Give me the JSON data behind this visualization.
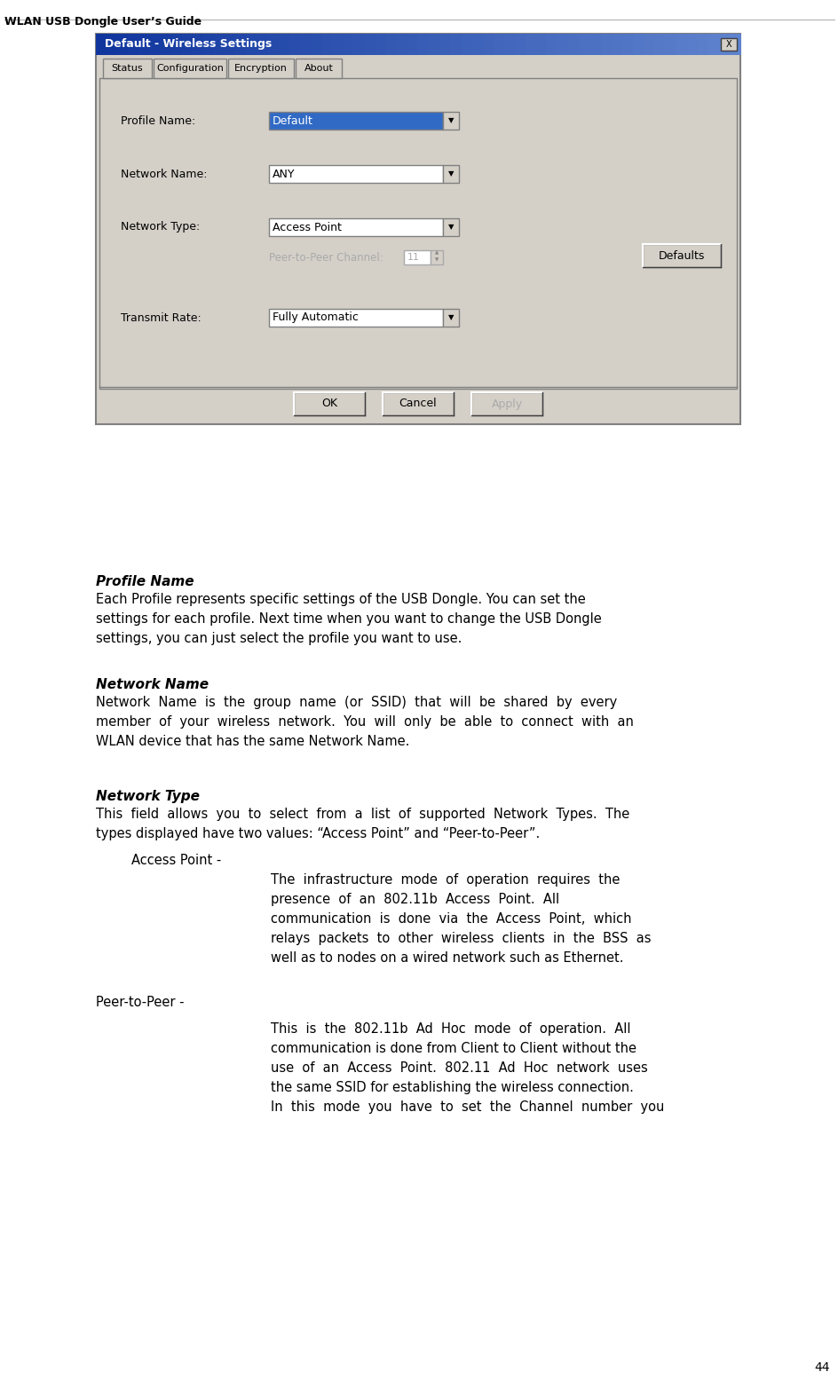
{
  "page_bg": "#ffffff",
  "header_text": "WLAN USB Dongle User’s Guide",
  "page_number": "44",
  "dialog_title": "Default - Wireless Settings",
  "sections": [
    {
      "heading": "Profile Name",
      "body_lines": [
        "Each Profile represents specific settings of the USB Dongle. You can set the",
        "settings for each profile. Next time when you want to change the USB Dongle",
        "settings, you can just select the profile you want to use."
      ]
    },
    {
      "heading": "Network Name",
      "body_lines": [
        "Network  Name  is  the  group  name  (or  SSID)  that  will  be  shared  by  every",
        "member  of  your  wireless  network.  You  will  only  be  able  to  connect  with  an",
        "WLAN device that has the same Network Name."
      ]
    },
    {
      "heading": "Network Type",
      "body_lines": [
        "This  field  allows  you  to  select  from  a  list  of  supported  Network  Types.  The",
        "types displayed have two values: “Access Point” and “Peer-to-Peer”."
      ]
    }
  ],
  "access_point_lines": [
    "The  infrastructure  mode  of  operation  requires  the",
    "presence  of  an  802.11b  Access  Point.  All",
    "communication  is  done  via  the  Access  Point,  which",
    "relays  packets  to  other  wireless  clients  in  the  BSS  as",
    "well as to nodes on a wired network such as Ethernet."
  ],
  "peer_lines": [
    "This  is  the  802.11b  Ad  Hoc  mode  of  operation.  All",
    "communication is done from Client to Client without the",
    "use  of  an  Access  Point.  802.11  Ad  Hoc  network  uses",
    "the same SSID for establishing the wireless connection.",
    "In  this  mode  you  have  to  set  the  Channel  number  you"
  ]
}
